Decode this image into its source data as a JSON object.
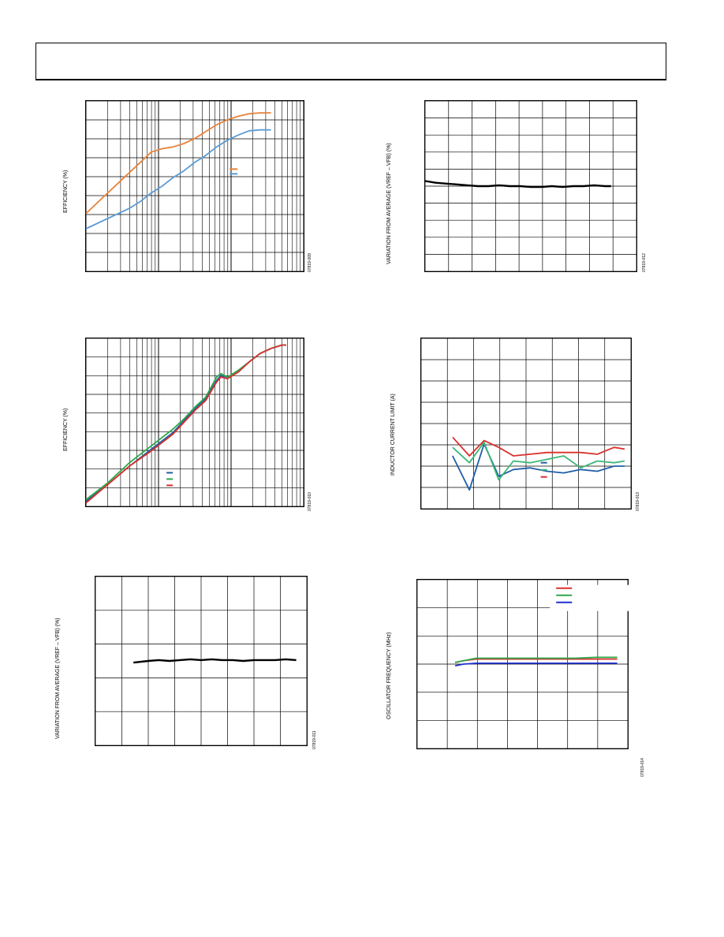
{
  "page": {
    "charts": [
      {
        "id": "c1",
        "ylabel": "EFFICIENCY (%)",
        "fig_id": "07819-009"
      },
      {
        "id": "c2",
        "ylabel": "VARIATION FROM AVERAGE (VREF – VFB) (%)",
        "fig_id": "07819-012"
      },
      {
        "id": "c3",
        "ylabel": "EFFICIENCY (%)",
        "fig_id": "07819-010"
      },
      {
        "id": "c4",
        "ylabel": "INDUCTOR CURRENT LIMIT (A)",
        "fig_id": "07819-013"
      },
      {
        "id": "c5",
        "ylabel": "VARIATION FROM AVERAGE (VREF – VFB) (%)",
        "fig_id": "07819-011"
      },
      {
        "id": "c6",
        "ylabel": "OSCILLATOR FREQUENCY (MHz)",
        "fig_id": "07819-014"
      }
    ]
  },
  "chart_data": [
    {
      "type": "line",
      "id": "c1",
      "x_scale": "log",
      "xlim": [
        0,
        1
      ],
      "ylim": [
        0,
        1
      ],
      "grid": true,
      "legend": "right",
      "colors": [
        "#e8823a",
        "#5b9bd5"
      ],
      "series": [
        {
          "x": [
            0,
            0.05,
            0.1,
            0.15,
            0.2,
            0.25,
            0.3,
            0.35,
            0.4,
            0.45,
            0.5,
            0.55,
            0.6,
            0.65,
            0.7,
            0.75,
            0.8,
            0.85,
            0.9,
            0.95,
            1.0
          ],
          "y": [
            0.34,
            0.4,
            0.46,
            0.52,
            0.58,
            0.64,
            0.7,
            0.72,
            0.73,
            0.75,
            0.78,
            0.82,
            0.86,
            0.89,
            0.91,
            0.925,
            0.93,
            0.93,
            null,
            null,
            null
          ]
        },
        {
          "x": [
            0,
            0.05,
            0.1,
            0.15,
            0.2,
            0.25,
            0.3,
            0.35,
            0.4,
            0.45,
            0.5,
            0.55,
            0.6,
            0.65,
            0.7,
            0.75,
            0.8,
            0.85,
            0.9,
            0.95,
            1.0
          ],
          "y": [
            0.25,
            0.28,
            0.31,
            0.34,
            0.37,
            0.41,
            0.46,
            0.5,
            0.55,
            0.59,
            0.64,
            0.68,
            0.73,
            0.77,
            0.8,
            0.825,
            0.83,
            0.83,
            null,
            null,
            null
          ]
        }
      ]
    },
    {
      "type": "line",
      "id": "c2",
      "xlim": [
        0,
        1
      ],
      "ylim": [
        0,
        1
      ],
      "grid": true,
      "colors": [
        "#000000"
      ],
      "series": [
        {
          "x": [
            0,
            0.05,
            0.1,
            0.15,
            0.2,
            0.25,
            0.3,
            0.35,
            0.4,
            0.45,
            0.5,
            0.55,
            0.6,
            0.65,
            0.7,
            0.75,
            0.8,
            0.85,
            0.88
          ],
          "y": [
            0.53,
            0.52,
            0.515,
            0.51,
            0.505,
            0.5,
            0.5,
            0.505,
            0.5,
            0.5,
            0.495,
            0.495,
            0.5,
            0.495,
            0.5,
            0.5,
            0.505,
            0.5,
            0.5
          ]
        }
      ]
    },
    {
      "type": "line",
      "id": "c3",
      "x_scale": "log",
      "xlim": [
        0,
        1
      ],
      "ylim": [
        0,
        1
      ],
      "grid": true,
      "legend": "left",
      "colors": [
        "#1f5fa8",
        "#2ea84a",
        "#d9302c"
      ],
      "series": [
        {
          "x": [
            0,
            0.1,
            0.2,
            0.3,
            0.4,
            0.45,
            0.5,
            0.55,
            0.6,
            0.62,
            0.65,
            0.7,
            0.75,
            0.8,
            0.85,
            0.9,
            0.92
          ],
          "y": [
            0.03,
            0.13,
            0.24,
            0.34,
            0.44,
            0.51,
            0.58,
            0.64,
            0.75,
            0.78,
            0.76,
            0.8,
            0.86,
            0.91,
            0.94,
            0.96,
            0.96
          ]
        },
        {
          "x": [
            0,
            0.1,
            0.2,
            0.3,
            0.4,
            0.45,
            0.5,
            0.55,
            0.6,
            0.62,
            0.65,
            0.7,
            0.75,
            0.8,
            0.85,
            0.9,
            0.92
          ],
          "y": [
            0.04,
            0.14,
            0.26,
            0.36,
            0.46,
            0.52,
            0.59,
            0.65,
            0.77,
            0.79,
            0.77,
            0.81,
            0.86,
            0.91,
            0.94,
            0.96,
            0.96
          ]
        },
        {
          "x": [
            0,
            0.1,
            0.2,
            0.3,
            0.4,
            0.45,
            0.5,
            0.55,
            0.6,
            0.62,
            0.65,
            0.7,
            0.75,
            0.8,
            0.85,
            0.9,
            0.92
          ],
          "y": [
            0.02,
            0.13,
            0.24,
            0.33,
            0.43,
            0.5,
            0.57,
            0.63,
            0.74,
            0.77,
            0.76,
            0.8,
            0.86,
            0.91,
            0.94,
            0.96,
            0.96
          ]
        }
      ]
    },
    {
      "type": "line",
      "id": "c4",
      "xlim": [
        0,
        1
      ],
      "ylim": [
        0,
        1
      ],
      "grid": true,
      "legend": "right",
      "colors": [
        "#1f5fa8",
        "#3cb878",
        "#d9302c"
      ],
      "series": [
        {
          "x": [
            0.15,
            0.23,
            0.3,
            0.37,
            0.44,
            0.52,
            0.6,
            0.68,
            0.76,
            0.84,
            0.92,
            0.97
          ],
          "y": [
            0.31,
            0.11,
            0.38,
            0.19,
            0.23,
            0.24,
            0.22,
            0.21,
            0.23,
            0.22,
            0.25,
            0.25
          ]
        },
        {
          "x": [
            0.15,
            0.23,
            0.3,
            0.37,
            0.44,
            0.52,
            0.6,
            0.68,
            0.76,
            0.84,
            0.92,
            0.97
          ],
          "y": [
            0.36,
            0.27,
            0.39,
            0.17,
            0.28,
            0.27,
            0.29,
            0.31,
            0.24,
            0.28,
            0.27,
            0.28
          ]
        },
        {
          "x": [
            0.15,
            0.23,
            0.3,
            0.37,
            0.44,
            0.52,
            0.6,
            0.68,
            0.76,
            0.84,
            0.92,
            0.97
          ],
          "y": [
            0.42,
            0.31,
            0.4,
            0.36,
            0.31,
            0.32,
            0.33,
            0.33,
            0.33,
            0.32,
            0.36,
            0.35
          ]
        }
      ]
    },
    {
      "type": "line",
      "id": "c5",
      "xlim": [
        0,
        1
      ],
      "ylim": [
        0,
        1
      ],
      "grid": true,
      "colors": [
        "#000000"
      ],
      "series": [
        {
          "x": [
            0.18,
            0.25,
            0.3,
            0.35,
            0.4,
            0.45,
            0.5,
            0.55,
            0.6,
            0.65,
            0.7,
            0.75,
            0.8,
            0.85,
            0.9,
            0.95
          ],
          "y": [
            0.49,
            0.5,
            0.505,
            0.5,
            0.505,
            0.51,
            0.505,
            0.51,
            0.505,
            0.505,
            0.5,
            0.505,
            0.505,
            0.505,
            0.51,
            0.505
          ]
        }
      ]
    },
    {
      "type": "line",
      "id": "c6",
      "xlim": [
        0,
        1
      ],
      "ylim": [
        0,
        1
      ],
      "grid": true,
      "legend": "top-right",
      "colors": [
        "#d9302c",
        "#2ea84a",
        "#1f2fd0"
      ],
      "series": [
        {
          "x": [
            0.18,
            0.22,
            0.28,
            0.35,
            0.45,
            0.55,
            0.65,
            0.75,
            0.85,
            0.95
          ],
          "y": [
            0.51,
            0.52,
            0.53,
            0.53,
            0.53,
            0.53,
            0.53,
            0.53,
            0.53,
            0.53
          ]
        },
        {
          "x": [
            0.18,
            0.22,
            0.28,
            0.35,
            0.45,
            0.55,
            0.65,
            0.75,
            0.85,
            0.95
          ],
          "y": [
            0.51,
            0.52,
            0.535,
            0.535,
            0.535,
            0.535,
            0.535,
            0.535,
            0.54,
            0.54
          ]
        },
        {
          "x": [
            0.18,
            0.22,
            0.28,
            0.35,
            0.45,
            0.55,
            0.65,
            0.75,
            0.85,
            0.95
          ],
          "y": [
            0.49,
            0.5,
            0.505,
            0.505,
            0.505,
            0.505,
            0.505,
            0.505,
            0.505,
            0.505
          ]
        }
      ]
    }
  ]
}
